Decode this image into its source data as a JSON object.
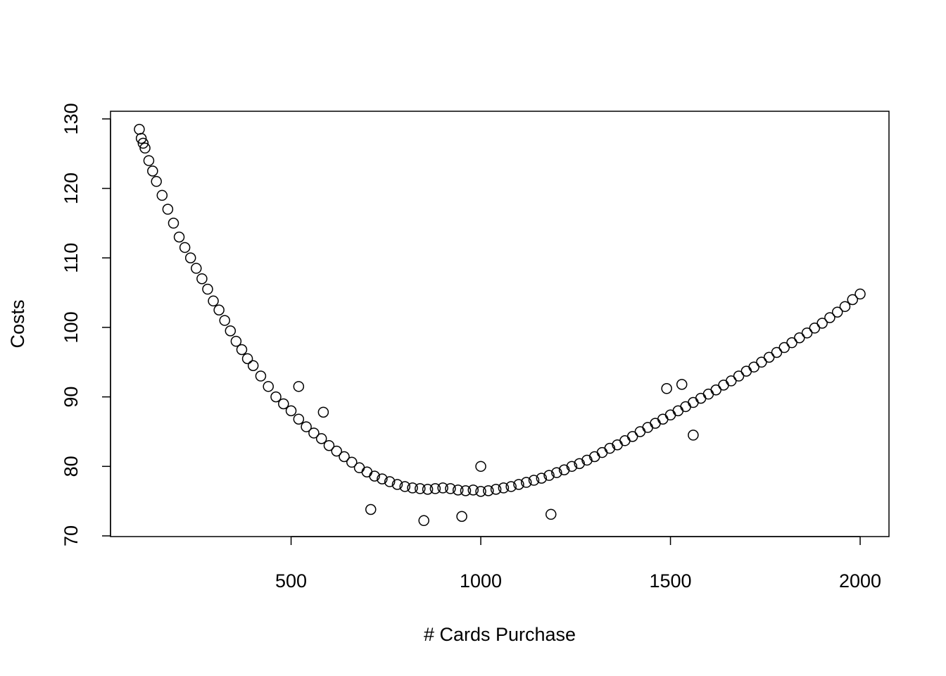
{
  "chart_data": {
    "type": "scatter",
    "xlabel": "# Cards Purchase",
    "ylabel": "Costs",
    "color": "#000000",
    "xlim": [
      24,
      2076
    ],
    "ylim": [
      69.9,
      131.1
    ],
    "xticks": [
      500,
      1000,
      1500,
      2000
    ],
    "yticks": [
      70,
      80,
      90,
      100,
      110,
      120,
      130
    ],
    "x": [
      100,
      105,
      110,
      115,
      125,
      135,
      145,
      160,
      175,
      190,
      205,
      220,
      235,
      250,
      265,
      280,
      295,
      310,
      325,
      340,
      355,
      370,
      385,
      400,
      420,
      440,
      460,
      480,
      500,
      520,
      540,
      560,
      580,
      600,
      620,
      640,
      660,
      680,
      700,
      720,
      740,
      760,
      780,
      800,
      820,
      840,
      860,
      880,
      900,
      920,
      940,
      960,
      980,
      1000,
      1020,
      1040,
      1060,
      1080,
      1100,
      1120,
      1140,
      1160,
      1180,
      1200,
      1220,
      1240,
      1260,
      1280,
      1300,
      1320,
      1340,
      1360,
      1380,
      1400,
      1420,
      1440,
      1460,
      1480,
      1500,
      1520,
      1540,
      1560,
      1580,
      1600,
      1620,
      1640,
      1660,
      1680,
      1700,
      1720,
      1740,
      1760,
      1780,
      1800,
      1820,
      1840,
      1860,
      1880,
      1900,
      1920,
      1940,
      1960,
      1980,
      2000,
      1185,
      520,
      585,
      1490,
      1530,
      850,
      710,
      1000,
      950,
      1560
    ],
    "y": [
      128.5,
      127.2,
      126.5,
      125.8,
      124,
      122.5,
      121,
      119,
      117,
      115,
      113,
      111.5,
      110,
      108.5,
      107,
      105.5,
      103.8,
      102.5,
      101,
      99.5,
      98,
      96.8,
      95.5,
      94.5,
      93,
      91.5,
      90,
      89,
      88,
      86.8,
      85.7,
      84.8,
      84,
      83,
      82.2,
      81.4,
      80.6,
      79.8,
      79.2,
      78.6,
      78.2,
      77.8,
      77.4,
      77.1,
      76.9,
      76.8,
      76.7,
      76.8,
      76.9,
      76.8,
      76.6,
      76.5,
      76.6,
      76.4,
      76.5,
      76.7,
      76.9,
      77.1,
      77.4,
      77.7,
      78,
      78.3,
      78.7,
      79.1,
      79.5,
      80,
      80.4,
      80.9,
      81.4,
      82,
      82.6,
      83.1,
      83.7,
      84.3,
      85,
      85.6,
      86.2,
      86.8,
      87.4,
      88,
      88.6,
      89.2,
      89.8,
      90.4,
      91,
      91.7,
      92.3,
      93,
      93.7,
      94.3,
      95,
      95.7,
      96.4,
      97.1,
      97.8,
      98.5,
      99.2,
      99.9,
      100.6,
      101.4,
      102.2,
      103,
      104,
      104.8,
      73.1,
      91.5,
      87.8,
      91.2,
      91.8,
      72.2,
      73.8,
      80,
      72.8,
      84.5
    ]
  }
}
